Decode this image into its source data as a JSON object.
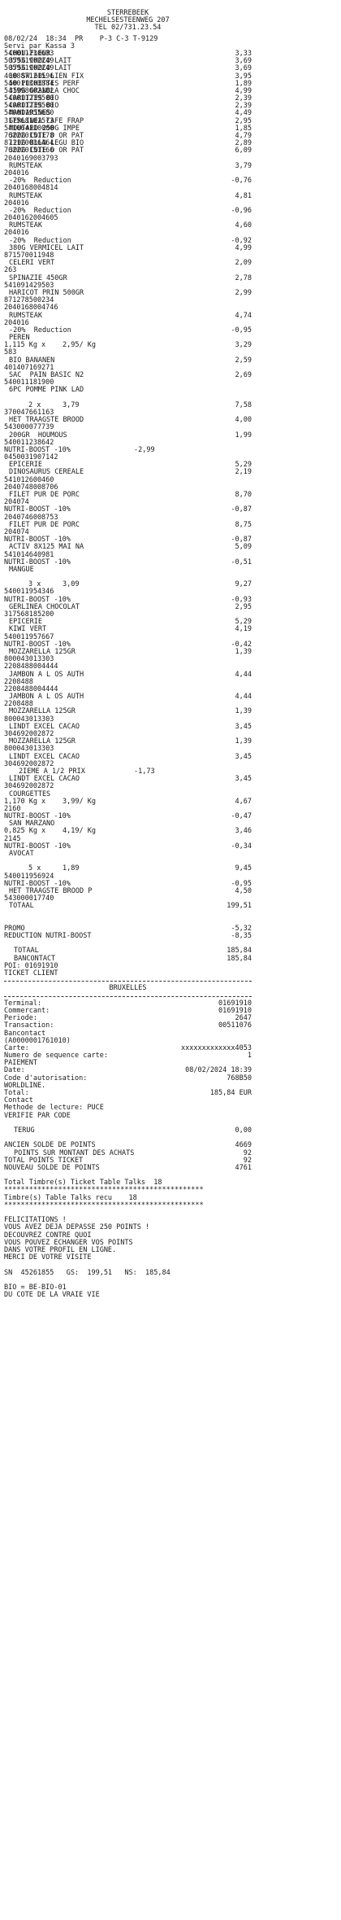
{
  "header": {
    "store": "STERREBEEK",
    "address": "MECHELSESTEENWEG 207",
    "tel": "TEL 02/731.23.54",
    "datetime": "08/02/24  18:34  PR    P-3 C-3 T-9129",
    "served": "Servi par Kassa 3"
  },
  "items_a": [
    {
      "desc": "CHOU-FLEUR",
      "price": "3,33",
      "code": "540011230633"
    },
    {
      "desc": "375G CHOCO LAIT",
      "price": "3,69",
      "code": "505931902249"
    },
    {
      "desc": "375G CHOCO LAIT",
      "price": "3,69",
      "code": "505931902249"
    },
    {
      "desc": "10 SW 60L LIEN FIX",
      "price": "3,95",
      "code": "400887121596"
    },
    {
      "desc": "50 POCHETTES PERF",
      "price": "1,89",
      "code": "540011303884"
    },
    {
      "desc": "350G GRANOLA CHOC",
      "price": "4,99",
      "code": "541998002182"
    },
    {
      "desc": "CAROTTES BIO",
      "price": "2,39",
      "code": "540011239500"
    },
    {
      "desc": "CAROTTES BIO",
      "price": "2,39",
      "code": "540011239500"
    },
    {
      "desc": "MANDARINES",
      "price": "4,49",
      "code": "540011955680"
    },
    {
      "desc": "GERLINEA CAFE FRAP",
      "price": "2,95",
      "code": "317568101573"
    },
    {
      "desc": "MOUTARD 250G IMPE",
      "price": "1,85",
      "code": "541064110000"
    },
    {
      "desc": "300G COTE D OR PAT",
      "price": "4,79",
      "code": "762220151178"
    },
    {
      "desc": "120G BLLN LEGU BIO",
      "price": "2,89",
      "code": "871120036464"
    },
    {
      "desc": "300G COTE D OR PAT",
      "price": "6,09",
      "code": "762220151166"
    }
  ],
  "items_b": [
    {
      "code": "2040169003793"
    },
    {
      "desc": "RUMSTEAK",
      "price": "3,79"
    },
    {
      "code": "204016"
    },
    {
      "desc": "-20%  Reduction",
      "price": "-0,76"
    },
    {
      "code": "2040168004814"
    },
    {
      "desc": "RUMSTEAK",
      "price": "4,81"
    },
    {
      "code": "204016"
    },
    {
      "desc": "-20%  Reduction",
      "price": "-0,96"
    },
    {
      "code": "2040162004605"
    },
    {
      "desc": "RUMSTEAK",
      "price": "4,60"
    },
    {
      "code": "204016"
    },
    {
      "desc": "-20%  Reduction",
      "price": "-0,92"
    },
    {
      "desc": "380G VERMICEL LAIT",
      "price": "4,99"
    },
    {
      "code": "871570011948"
    },
    {
      "desc": "CELERI VERT",
      "price": "2,09"
    },
    {
      "code": "263"
    },
    {
      "desc": "SPINAZIE 450GR",
      "price": "2,78"
    },
    {
      "code": "541091429503"
    },
    {
      "desc": "HARICOT PRIN 500GR",
      "price": "2,99"
    },
    {
      "code": "871278500234"
    },
    {
      "code": "2040168004746"
    },
    {
      "desc": "RUMSTEAK",
      "price": "4,74"
    },
    {
      "code": "204016"
    },
    {
      "desc": "-20%  Reduction",
      "price": "-0,95"
    },
    {
      "desc": "PEREN"
    },
    {
      "qty": "1,115 Kg x",
      "unit": "2,95/ Kg",
      "price": "3,29"
    },
    {
      "code": "583"
    },
    {
      "desc": "BIO BANANEN",
      "price": "2,59"
    },
    {
      "code": "401407169271"
    },
    {
      "desc": "SAC  PAIN BASIC N2",
      "price": "2,69"
    },
    {
      "code": "540011181900"
    },
    {
      "desc": "6PC POMME PINK LAD"
    }
  ],
  "items_c": [
    {
      "qty": "2 x",
      "unit": "3,79",
      "price": "7,58"
    },
    {
      "code": "370047661163"
    },
    {
      "desc": "HET TRAAGSTE BROOD",
      "price": "4,00"
    },
    {
      "code": "543000077739"
    },
    {
      "desc": "200GR  HOUMOUS",
      "price": "1,99"
    },
    {
      "code": "540011238642"
    },
    {
      "flush": "NUTRI-BOOST -10%",
      "mid": "-2,99"
    },
    {
      "code": "0450031907142"
    },
    {
      "desc": "EPICERIE",
      "price": "5,29"
    },
    {
      "desc": "DINOSAURUS CEREALE",
      "price": "2,19"
    },
    {
      "code": "541012600460"
    },
    {
      "code": "2040748008706"
    },
    {
      "desc": "FILET PUR DE PORC",
      "price": "8,70"
    },
    {
      "code": "204074"
    },
    {
      "flush": "NUTRI-BOOST -10%",
      "price": "-0,87"
    },
    {
      "code": "2040746008753"
    },
    {
      "desc": "FILET PUR DE PORC",
      "price": "8,75"
    },
    {
      "code": "204074"
    },
    {
      "flush": "NUTRI-BOOST -10%",
      "price": "-0,87"
    },
    {
      "desc": "ACTIV 8X125 MAI NA",
      "price": "5,09"
    },
    {
      "code": "541014640981"
    },
    {
      "flush": "NUTRI-BOOST -10%",
      "price": "-0,51"
    },
    {
      "desc": "MANGUE"
    }
  ],
  "items_d": [
    {
      "qty": "3 x",
      "unit": "3,09",
      "price": "9,27"
    },
    {
      "code": "540011954346"
    },
    {
      "flush": "NUTRI-BOOST -10%",
      "price": "-0,93"
    },
    {
      "desc": "GERLINEA CHOCOLAT",
      "price": "2,95"
    },
    {
      "code": "317568185200"
    },
    {
      "desc": "EPICERIE",
      "price": "5,29"
    },
    {
      "desc": "KIWI VERT",
      "price": "4,19"
    },
    {
      "code": "540011957667"
    },
    {
      "flush": "NUTRI-BOOST -10%",
      "price": "-0,42"
    },
    {
      "desc": "MOZZARELLA 125GR",
      "price": "1,39"
    },
    {
      "code": "800043013303"
    },
    {
      "code": "2208488004444"
    },
    {
      "desc": "JAMBON A L OS AUTH",
      "price": "4,44"
    },
    {
      "code": "2208488"
    },
    {
      "code": "2208488004444"
    },
    {
      "desc": "JAMBON A L OS AUTH",
      "price": "4,44"
    },
    {
      "code": "2208488"
    },
    {
      "desc": "MOZZARELLA 125GR",
      "price": "1,39"
    },
    {
      "code": "800043013303"
    },
    {
      "desc": "LINDT EXCEL CACAO",
      "price": "3,45"
    },
    {
      "code": "304692002872"
    },
    {
      "desc": "MOZZARELLA 125GR",
      "price": "1,39"
    },
    {
      "code": "800043013303"
    },
    {
      "desc": "LINDT EXCEL CACAO",
      "price": "3,45"
    },
    {
      "code": "304692002872"
    },
    {
      "promo": "2IEME A 1/2 PRIX",
      "mid": "-1,73"
    },
    {
      "desc": "LINDT EXCEL CACAO",
      "price": "3,45"
    },
    {
      "code": "304692002872"
    },
    {
      "desc": "COURGETTES"
    },
    {
      "qty": "1,170 Kg x",
      "unit": "3,99/ Kg",
      "price": "4,67"
    },
    {
      "code": "2160"
    },
    {
      "flush": "NUTRI-BOOST -10%",
      "price": "-0,47"
    },
    {
      "desc": "SAN MARZANO"
    },
    {
      "qty": "0,825 Kg x",
      "unit": "4,19/ Kg",
      "price": "3,46"
    },
    {
      "code": "2145"
    },
    {
      "flush": "NUTRI-BOOST -10%",
      "price": "-0,34"
    },
    {
      "desc": "AVOCAT"
    }
  ],
  "items_e": [
    {
      "qty": "5 x",
      "unit": "1,89",
      "price": "9,45"
    },
    {
      "code": "540011956924"
    },
    {
      "flush": "NUTRI-BOOST -10%",
      "price": "-0,95"
    },
    {
      "desc": "HET TRAAGSTE BROOD P",
      "price": "4,50"
    },
    {
      "code": "543000017740"
    },
    {
      "desc": "TOTAAL",
      "price": "199,51"
    }
  ],
  "totals": {
    "promo_label": "PROMO",
    "promo_value": "-5,32",
    "reduction_label": "REDUCTION NUTRI-BOOST",
    "reduction_value": "-8,35",
    "total_label": "TOTAAL",
    "total_value": "185,84",
    "bancontact_label": "BANCONTACT",
    "bancontact_value": "185,84",
    "poi": "POI: 01691910",
    "ticket_client": "TICKET CLIENT"
  },
  "payment": {
    "city": "BRUXELLES",
    "rows": [
      {
        "label": "Terminal:",
        "value": "01691910"
      },
      {
        "label": "Commercant:",
        "value": "01691910"
      },
      {
        "label": "Periode:",
        "value": "2647"
      },
      {
        "label": "Transaction:",
        "value": "00511076"
      }
    ],
    "brand": "Bancontact",
    "aid": "(A0000001761010)",
    "card_label": "Carte:",
    "card_value": "xxxxxxxxxxxxx4053",
    "seq_label": "Numero de sequence carte:",
    "seq_value": "1",
    "paiement": "PAIEMENT",
    "date_label": "Date:",
    "date_value": "08/02/2024 18:39",
    "auth_label": "Code d'autorisation:",
    "auth_value": "768B50",
    "worldline": "WORLDLINE.",
    "total_label": "Total:",
    "total_value": "185,84 EUR",
    "contact": "Contact",
    "method": "Methode de lecture: PUCE",
    "verify": "VERIFIE PAR CODE",
    "terug_label": "TERUG",
    "terug_value": "0,00"
  },
  "points": {
    "old_label": "ANCIEN SOLDE DE POINTS",
    "old_value": "4669",
    "earned_label": "POINTS SUR MONTANT DES ACHATS",
    "earned_value": "92",
    "total_label": "TOTAL POINTS TICKET",
    "total_value": "92",
    "new_label": "NOUVEAU SOLDE DE POINTS",
    "new_value": "4761",
    "timbres": "Total Timbre(s) Ticket Table Talks  18",
    "stars": "************************************************",
    "recu": "Timbre(s) Table Talks recu    18"
  },
  "footer": {
    "lines": [
      "FELICITATIONS !",
      "VOUS AVEZ DEJA DEPASSE 250 POINTS !",
      "DECOUVREZ CONTRE QUOI",
      "VOUS POUVEZ ECHANGER VOS POINTS",
      "DANS VOTRE PROFIL EN LIGNE.",
      "MERCI DE VOTRE VISITE"
    ],
    "sn": "SN  45261855   GS:  199,51   NS:  185,84",
    "bio": "BIO = BE-BIO-01",
    "cote": "DU COTE DE LA VRAIE VIE"
  }
}
